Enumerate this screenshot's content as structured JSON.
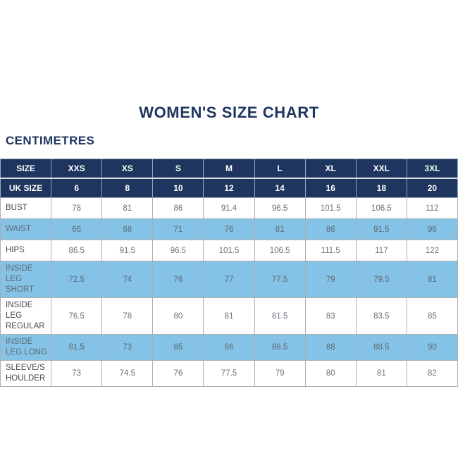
{
  "page": {
    "title": "WOMEN'S SIZE CHART",
    "unit_label": "CENTIMETRES"
  },
  "colors": {
    "navy": "#1e355f",
    "light_blue": "#85c3e6",
    "border_gray": "#adaeb0",
    "value_text": "#6b737b",
    "label_text": "#424a52",
    "header_text": "#ffffff"
  },
  "chart_data": {
    "type": "table",
    "title": "WOMEN'S SIZE CHART",
    "unit": "CENTIMETRES",
    "header_rows": [
      {
        "label": "SIZE",
        "values": [
          "XXS",
          "XS",
          "S",
          "M",
          "L",
          "XL",
          "XXL",
          "3XL"
        ]
      },
      {
        "label": "UK SIZE",
        "values": [
          "6",
          "8",
          "10",
          "12",
          "14",
          "16",
          "18",
          "20"
        ]
      }
    ],
    "rows": [
      {
        "label": "BUST",
        "values": [
          "78",
          "81",
          "86",
          "91.4",
          "96.5",
          "101.5",
          "106.5",
          "112"
        ],
        "shaded": false
      },
      {
        "label": "WAIST",
        "values": [
          "66",
          "68",
          "71",
          "76",
          "81",
          "86",
          "91.5",
          "96"
        ],
        "shaded": true
      },
      {
        "label": "HIPS",
        "values": [
          "86.5",
          "91.5",
          "96.5",
          "101.5",
          "106.5",
          "111.5",
          "117",
          "122"
        ],
        "shaded": false
      },
      {
        "label": "INSIDE LEG SHORT",
        "values": [
          "72.5",
          "74",
          "76",
          "77",
          "77.5",
          "79",
          "79.5",
          "81"
        ],
        "shaded": true
      },
      {
        "label": "INSIDE LEG REGULAR",
        "values": [
          "76.5",
          "78",
          "80",
          "81",
          "81.5",
          "83",
          "83.5",
          "85"
        ],
        "shaded": false
      },
      {
        "label": "INSIDE LEG LONG",
        "values": [
          "81.5",
          "73",
          "85",
          "86",
          "86.5",
          "88",
          "88.5",
          "90"
        ],
        "shaded": true
      },
      {
        "label": "SLEEVE/SHOULDER",
        "values": [
          "73",
          "74.5",
          "76",
          "77.5",
          "79",
          "80",
          "81",
          "82"
        ],
        "shaded": false
      }
    ]
  }
}
